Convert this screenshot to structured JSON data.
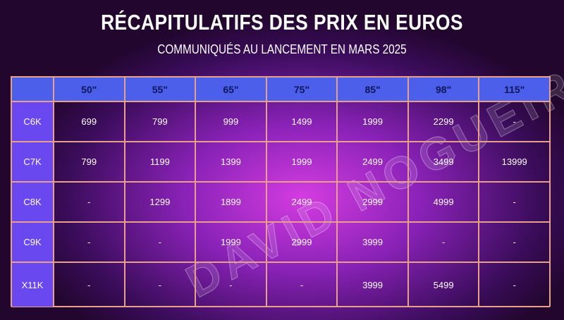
{
  "header": {
    "title": "RÉCAPITULATIFS DES PRIX EN EUROS",
    "subtitle": "COMMUNIQUÉS AU LANCEMENT EN MARS 2025"
  },
  "watermark": "DAVID NOGUEIRA",
  "table": {
    "columns": [
      "50\"",
      "55\"",
      "65\"",
      "75\"",
      "85\"",
      "98\"",
      "115\""
    ],
    "rows": [
      {
        "label": "C6K",
        "cells": [
          699,
          799,
          999,
          1499,
          1999,
          2299,
          "-"
        ]
      },
      {
        "label": "C7K",
        "cells": [
          799,
          1199,
          1399,
          1999,
          2499,
          3499,
          13999
        ]
      },
      {
        "label": "C8K",
        "cells": [
          "-",
          1299,
          1899,
          2499,
          2999,
          4999,
          "-"
        ]
      },
      {
        "label": "C9K",
        "cells": [
          "-",
          "-",
          1999,
          2999,
          3999,
          "-",
          "-"
        ]
      },
      {
        "label": "X11K",
        "cells": [
          "-",
          "-",
          "-",
          "-",
          3999,
          5499,
          "-"
        ]
      }
    ]
  }
}
